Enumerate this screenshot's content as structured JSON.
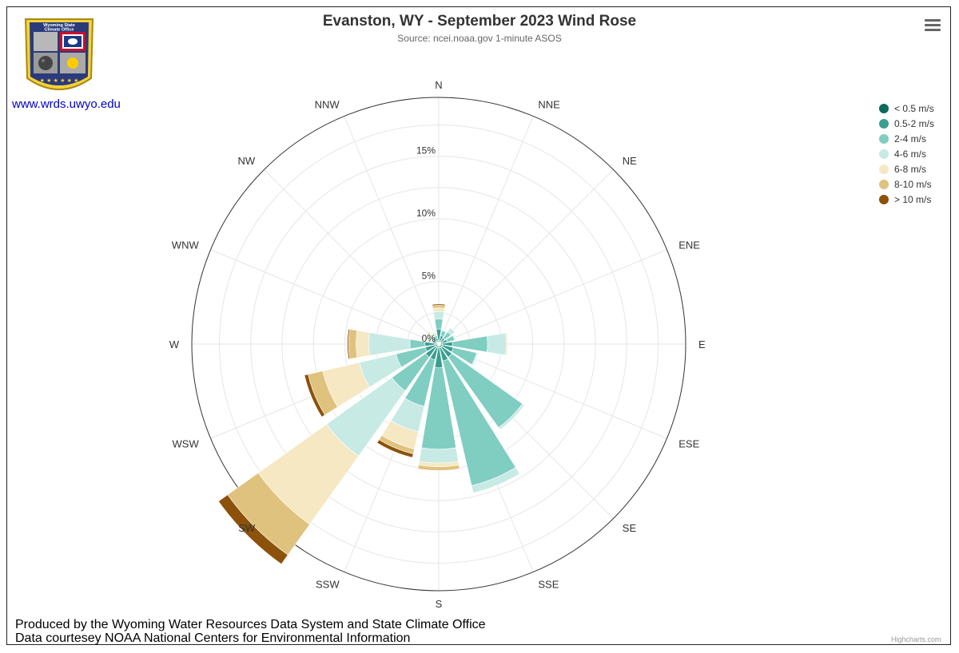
{
  "header": {
    "title": "Evanston, WY - September 2023 Wind Rose",
    "subtitle": "Source: ncei.noaa.gov 1-minute ASOS"
  },
  "logo": {
    "text_line1": "Wyoming State",
    "text_line2": "Climate Office",
    "link": "www.wrds.uwyo.edu"
  },
  "menu": {
    "icon": "hamburger-menu-icon"
  },
  "footer": {
    "line1": "Produced by the Wyoming Water Resources Data System and State Climate Office",
    "line2": "Data courtesey NOAA National Centers for Environmental Information"
  },
  "credits": "Highcharts.com",
  "chart_data": {
    "type": "bar",
    "subtype": "windrose",
    "title": "Evanston, WY - September 2023 Wind Rose",
    "subtitle": "Source: ncei.noaa.gov 1-minute ASOS",
    "directions": [
      "N",
      "NNE",
      "NE",
      "ENE",
      "E",
      "ESE",
      "SE",
      "SSE",
      "S",
      "SSW",
      "SW",
      "WSW",
      "W",
      "WNW",
      "NW",
      "NNW"
    ],
    "ytick_labels": [
      "0%",
      "5%",
      "10%",
      "15%"
    ],
    "ytick_values": [
      0,
      5,
      10,
      15
    ],
    "ylim": [
      0,
      19.7
    ],
    "stacking": "normal",
    "legend_position": "top-right",
    "series": [
      {
        "name": "< 0.5 m/s",
        "color": "#0d6b5e",
        "values": [
          0.3,
          0.2,
          0.2,
          0.2,
          0.3,
          0.3,
          0.3,
          0.3,
          0.3,
          0.3,
          0.3,
          0.3,
          0.3,
          0.2,
          0.2,
          0.2
        ]
      },
      {
        "name": "0.5-2 m/s",
        "color": "#3a9e91",
        "values": [
          0.9,
          0.5,
          0.4,
          0.5,
          0.8,
          0.9,
          1.0,
          1.1,
          1.6,
          1.0,
          1.0,
          0.8,
          0.8,
          0.3,
          0.4,
          0.3
        ]
      },
      {
        "name": "2-4 m/s",
        "color": "#80cdc1",
        "values": [
          0.8,
          0.4,
          0.6,
          0.6,
          2.8,
          1.9,
          6.9,
          10.2,
          6.5,
          3.8,
          3.3,
          2.4,
          1.2,
          0.1,
          0.1,
          0.2
        ]
      },
      {
        "name": "4-6 m/s",
        "color": "#c7eae5",
        "values": [
          0.6,
          0.1,
          0.4,
          0.1,
          1.5,
          0.1,
          0.2,
          0.6,
          1.1,
          2.1,
          6.4,
          3.0,
          3.3,
          0.1,
          0.3,
          0.2
        ]
      },
      {
        "name": "6-8 m/s",
        "color": "#f6e8c3",
        "values": [
          0.3,
          0.0,
          0.0,
          0.0,
          0.1,
          0.0,
          0.0,
          0.0,
          0.3,
          1.4,
          6.7,
          3.0,
          1.0,
          0.1,
          0.1,
          0.1
        ]
      },
      {
        "name": "8-10 m/s",
        "color": "#dfc27d",
        "values": [
          0.2,
          0.0,
          0.0,
          0.0,
          0.0,
          0.0,
          0.0,
          0.0,
          0.3,
          0.4,
          3.0,
          1.2,
          0.6,
          0.1,
          0.1,
          0.0
        ]
      },
      {
        "name": "> 10 m/s",
        "color": "#8c510a",
        "values": [
          0.1,
          0.0,
          0.0,
          0.0,
          0.0,
          0.0,
          0.0,
          0.0,
          0.0,
          0.3,
          0.9,
          0.3,
          0.1,
          0.0,
          0.0,
          0.0
        ]
      }
    ]
  }
}
